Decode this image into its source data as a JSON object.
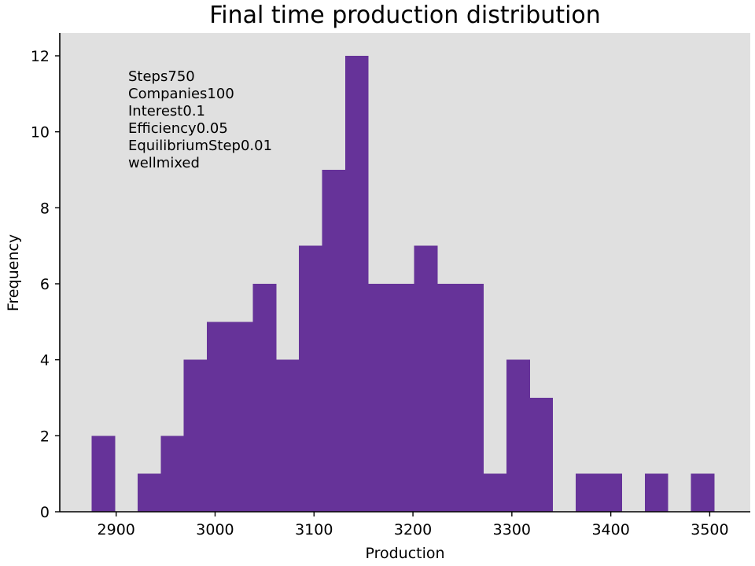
{
  "chart_data": {
    "type": "bar",
    "title": "Final time production distribution",
    "xlabel": "Production",
    "ylabel": "Frequency",
    "xlim": [
      2843,
      3541
    ],
    "ylim": [
      0,
      12.6
    ],
    "x_ticks": [
      2900,
      3000,
      3100,
      3200,
      3300,
      3400,
      3500
    ],
    "y_ticks": [
      0,
      2,
      4,
      6,
      8,
      10,
      12
    ],
    "bin_width": 23.3,
    "bins": [
      {
        "start": 2875.1,
        "count": 2
      },
      {
        "start": 2898.4,
        "count": 0
      },
      {
        "start": 2921.7,
        "count": 1
      },
      {
        "start": 2945.0,
        "count": 2
      },
      {
        "start": 2968.3,
        "count": 4
      },
      {
        "start": 2991.6,
        "count": 5
      },
      {
        "start": 3014.9,
        "count": 5
      },
      {
        "start": 3038.2,
        "count": 6
      },
      {
        "start": 3061.5,
        "count": 4
      },
      {
        "start": 3084.8,
        "count": 7
      },
      {
        "start": 3108.1,
        "count": 9
      },
      {
        "start": 3131.4,
        "count": 12
      },
      {
        "start": 3154.7,
        "count": 6
      },
      {
        "start": 3178.0,
        "count": 6
      },
      {
        "start": 3201.3,
        "count": 7
      },
      {
        "start": 3224.6,
        "count": 6
      },
      {
        "start": 3247.9,
        "count": 6
      },
      {
        "start": 3271.2,
        "count": 1
      },
      {
        "start": 3294.5,
        "count": 4
      },
      {
        "start": 3317.8,
        "count": 3
      },
      {
        "start": 3341.1,
        "count": 0
      },
      {
        "start": 3364.4,
        "count": 1
      },
      {
        "start": 3387.7,
        "count": 1
      },
      {
        "start": 3411.0,
        "count": 0
      },
      {
        "start": 3434.3,
        "count": 1
      },
      {
        "start": 3457.6,
        "count": 0
      },
      {
        "start": 3480.9,
        "count": 1
      }
    ],
    "annotation_lines": [
      "Steps750",
      "Companies100",
      "Interest0.1",
      "Efficiency0.05",
      "EquilibriumStep0.01",
      "wellmixed"
    ],
    "grid": false,
    "colors": {
      "bar": "#663399",
      "plot_background": "#e0e0e0",
      "axis": "#000000"
    }
  }
}
